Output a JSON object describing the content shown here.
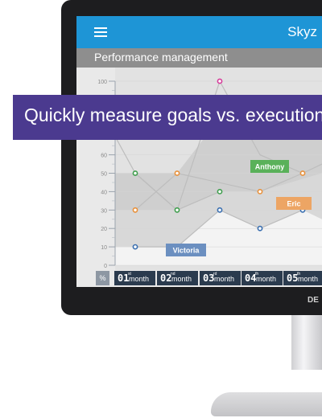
{
  "app": {
    "brand": "Skyz",
    "title": "Performance management"
  },
  "banner": {
    "text": "Quickly measure goals vs. execution"
  },
  "bezel": {
    "logo": "DE"
  },
  "bottom": {
    "percent_label": "%",
    "months": [
      {
        "num": "01",
        "suffix": "st",
        "word": "month"
      },
      {
        "num": "02",
        "suffix": "nd",
        "word": "month"
      },
      {
        "num": "03",
        "suffix": "rd",
        "word": "month"
      },
      {
        "num": "04",
        "suffix": "th",
        "word": "month"
      },
      {
        "num": "05",
        "suffix": "th",
        "word": "month"
      }
    ]
  },
  "colors": {
    "appbar": "#1e95d6",
    "subbar": "#8e8e8e",
    "banner": "#4b3a8f",
    "tab": "#2b3b4e"
  },
  "chart_data": {
    "type": "area",
    "ylim": [
      0,
      100
    ],
    "yticks": [
      "100",
      "90",
      "80",
      "70",
      "60",
      "50",
      "40",
      "30",
      "20",
      "10",
      "0"
    ],
    "categories": [
      "01st month",
      "02nd month",
      "03rd month",
      "04th month",
      "05th month"
    ],
    "series": [
      {
        "name": "Victoria",
        "color": "#3a6fb0",
        "values": [
          10,
          10,
          30,
          20,
          30
        ]
      },
      {
        "name": "Eric",
        "color": "#e8903a",
        "values": [
          30,
          50,
          null,
          40,
          50
        ]
      },
      {
        "name": "Anthony",
        "color": "#3f9e4d",
        "values": [
          50,
          30,
          40,
          null,
          null
        ]
      },
      {
        "name": "",
        "color": "#d63c9a",
        "values": [
          null,
          null,
          100,
          null,
          null
        ]
      }
    ],
    "labels": [
      {
        "series": "Victoria",
        "text": "Victoria",
        "color": "#6b8fc0"
      },
      {
        "series": "Eric",
        "text": "Eric",
        "color": "#eda564"
      },
      {
        "series": "Anthony",
        "text": "Anthony",
        "color": "#5ab15a"
      }
    ]
  }
}
